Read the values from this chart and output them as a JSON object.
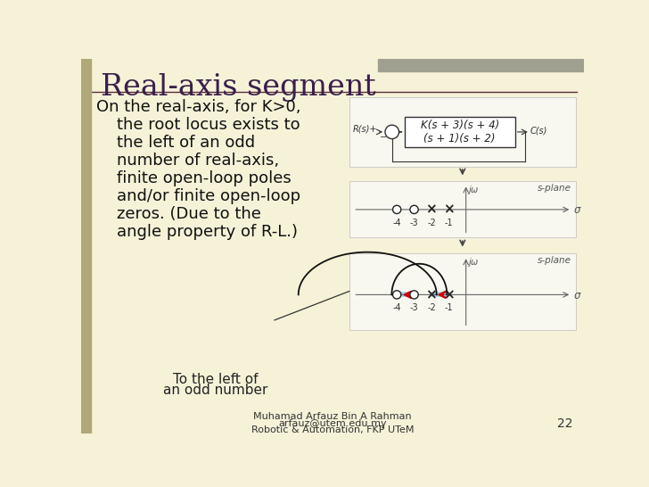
{
  "title": "Real-axis segment",
  "bg_color": "#f5f2d8",
  "panel_bg": "#ffffff",
  "title_color": "#3b1f4a",
  "body_text_color": "#111111",
  "body_text_lines": [
    "On the real-axis, for K>0,",
    "    the root locus exists to",
    "    the left of an odd",
    "    number of real-axis,",
    "    finite open-loop poles",
    "    and/or finite open-loop",
    "    zeros. (Due to the",
    "    angle property of R-L.)"
  ],
  "bottom_label1": "To the left of",
  "bottom_label2": "an odd number",
  "footer_line1": "Muhamad Arfauz Bin A Rahman",
  "footer_line2": "arfauz@utem.edu.my",
  "footer_line3": "Robotic & Automation, FKP UTeM",
  "page_number": "22",
  "tf_numerator": "K(s + 3)(s + 4)",
  "tf_denominator": "(s + 1)(s + 2)",
  "poles": [
    -2,
    -1
  ],
  "zeros": [
    -4,
    -3
  ],
  "sidebar_color": "#b0a878",
  "axis_color": "#666666",
  "pole_color": "#222222",
  "zero_color": "#222222",
  "rl_segment_color": "#aacce8",
  "arrow_color": "#cc0000",
  "curve_color": "#111111",
  "header_bar_color": "#a0a090",
  "rule_color": "#5a2d3a"
}
